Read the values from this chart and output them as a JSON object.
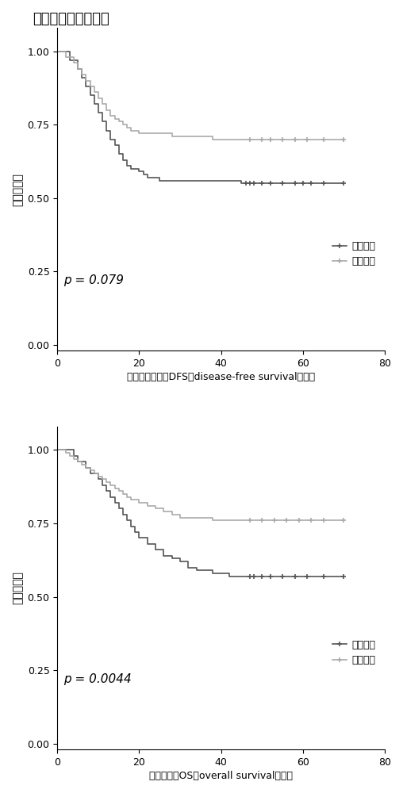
{
  "title": "间质比生存分析结果",
  "title_fontsize": 13,
  "background_color": "#ffffff",
  "plot1": {
    "xlabel": "无疾病生存率（DFS，disease-free survival，月）",
    "ylabel": "累积生存率",
    "pvalue": "p = 0.079",
    "xlim": [
      0,
      80
    ],
    "ylim": [
      -0.02,
      1.08
    ],
    "xticks": [
      0,
      20,
      40,
      60,
      80
    ],
    "yticks": [
      0.0,
      0.25,
      0.5,
      0.75,
      1.0
    ],
    "legend_labels": [
      "高间质比",
      "低间质比"
    ],
    "high_color": "#555555",
    "low_color": "#aaaaaa",
    "high_steps_x": [
      0,
      2,
      3,
      5,
      6,
      7,
      8,
      9,
      10,
      11,
      12,
      13,
      14,
      15,
      16,
      17,
      18,
      19,
      20,
      21,
      22,
      23,
      25,
      27,
      29,
      33,
      36,
      40,
      43,
      45,
      46,
      47,
      48,
      50,
      52,
      55,
      58,
      60,
      62,
      65,
      70
    ],
    "high_steps_y": [
      1.0,
      1.0,
      0.97,
      0.94,
      0.91,
      0.88,
      0.85,
      0.82,
      0.79,
      0.76,
      0.73,
      0.7,
      0.68,
      0.65,
      0.63,
      0.61,
      0.6,
      0.6,
      0.59,
      0.58,
      0.57,
      0.57,
      0.56,
      0.56,
      0.56,
      0.56,
      0.56,
      0.56,
      0.56,
      0.55,
      0.55,
      0.55,
      0.55,
      0.55,
      0.55,
      0.55,
      0.55,
      0.55,
      0.55,
      0.55,
      0.55
    ],
    "high_censor_x": [
      46,
      47,
      48,
      50,
      52,
      55,
      58,
      60,
      62,
      65,
      70
    ],
    "high_censor_y": [
      0.55,
      0.55,
      0.55,
      0.55,
      0.55,
      0.55,
      0.55,
      0.55,
      0.55,
      0.55,
      0.55
    ],
    "low_steps_x": [
      0,
      1,
      2,
      4,
      5,
      6,
      7,
      8,
      9,
      10,
      11,
      12,
      13,
      14,
      15,
      16,
      17,
      18,
      19,
      20,
      22,
      24,
      26,
      28,
      30,
      32,
      35,
      38,
      41,
      44,
      47,
      50,
      52,
      55,
      58,
      61,
      65,
      70
    ],
    "low_steps_y": [
      1.0,
      1.0,
      0.98,
      0.96,
      0.94,
      0.92,
      0.9,
      0.88,
      0.86,
      0.84,
      0.82,
      0.8,
      0.78,
      0.77,
      0.76,
      0.75,
      0.74,
      0.73,
      0.73,
      0.72,
      0.72,
      0.72,
      0.72,
      0.71,
      0.71,
      0.71,
      0.71,
      0.7,
      0.7,
      0.7,
      0.7,
      0.7,
      0.7,
      0.7,
      0.7,
      0.7,
      0.7,
      0.7
    ],
    "low_censor_x": [
      47,
      50,
      52,
      55,
      58,
      61,
      65,
      70
    ],
    "low_censor_y": [
      0.7,
      0.7,
      0.7,
      0.7,
      0.7,
      0.7,
      0.7,
      0.7
    ]
  },
  "plot2": {
    "xlabel": "总生存率（OS，overall survival，月）",
    "ylabel": "累积生存率",
    "pvalue": "p = 0.0044",
    "xlim": [
      0,
      80
    ],
    "ylim": [
      -0.02,
      1.08
    ],
    "xticks": [
      0,
      20,
      40,
      60,
      80
    ],
    "yticks": [
      0.0,
      0.25,
      0.5,
      0.75,
      1.0
    ],
    "legend_labels": [
      "高间质比",
      "低间质比"
    ],
    "high_color": "#555555",
    "low_color": "#aaaaaa",
    "high_steps_x": [
      0,
      2,
      4,
      5,
      7,
      8,
      10,
      11,
      12,
      13,
      14,
      15,
      16,
      17,
      18,
      19,
      20,
      22,
      24,
      26,
      28,
      30,
      32,
      34,
      36,
      38,
      40,
      42,
      44,
      46,
      47,
      48,
      50,
      52,
      55,
      58,
      61,
      65,
      70
    ],
    "high_steps_y": [
      1.0,
      1.0,
      0.98,
      0.96,
      0.94,
      0.92,
      0.9,
      0.88,
      0.86,
      0.84,
      0.82,
      0.8,
      0.78,
      0.76,
      0.74,
      0.72,
      0.7,
      0.68,
      0.66,
      0.64,
      0.63,
      0.62,
      0.6,
      0.59,
      0.59,
      0.58,
      0.58,
      0.57,
      0.57,
      0.57,
      0.57,
      0.57,
      0.57,
      0.57,
      0.57,
      0.57,
      0.57,
      0.57,
      0.57
    ],
    "high_censor_x": [
      47,
      48,
      50,
      52,
      55,
      58,
      61,
      65,
      70
    ],
    "high_censor_y": [
      0.57,
      0.57,
      0.57,
      0.57,
      0.57,
      0.57,
      0.57,
      0.57,
      0.57
    ],
    "low_steps_x": [
      0,
      1,
      2,
      3,
      4,
      5,
      6,
      7,
      8,
      9,
      10,
      11,
      12,
      13,
      14,
      15,
      16,
      17,
      18,
      20,
      22,
      24,
      26,
      28,
      30,
      32,
      35,
      38,
      41,
      44,
      47,
      50,
      53,
      56,
      59,
      62,
      65,
      70
    ],
    "low_steps_y": [
      1.0,
      1.0,
      0.99,
      0.98,
      0.97,
      0.96,
      0.95,
      0.94,
      0.93,
      0.92,
      0.91,
      0.9,
      0.89,
      0.88,
      0.87,
      0.86,
      0.85,
      0.84,
      0.83,
      0.82,
      0.81,
      0.8,
      0.79,
      0.78,
      0.77,
      0.77,
      0.77,
      0.76,
      0.76,
      0.76,
      0.76,
      0.76,
      0.76,
      0.76,
      0.76,
      0.76,
      0.76,
      0.76
    ],
    "low_censor_x": [
      47,
      50,
      53,
      56,
      59,
      62,
      65,
      70
    ],
    "low_censor_y": [
      0.76,
      0.76,
      0.76,
      0.76,
      0.76,
      0.76,
      0.76,
      0.76
    ]
  },
  "font_family": "SimHei",
  "axis_fontsize": 10,
  "tick_fontsize": 9,
  "legend_fontsize": 9,
  "pvalue_fontsize": 11,
  "xlabel_fontsize": 9
}
